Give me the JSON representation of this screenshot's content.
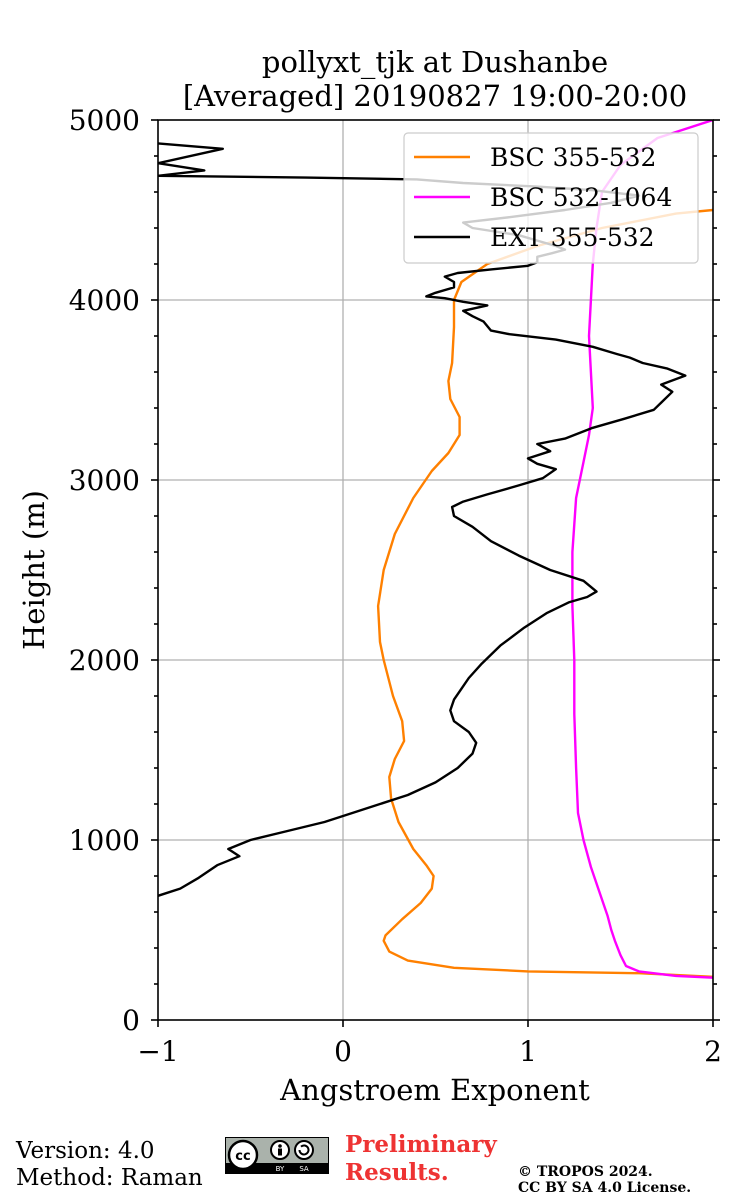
{
  "chart_data": {
    "type": "line",
    "title": [
      "pollyxt_tjk at Dushanbe",
      "[Averaged] 20190827 19:00-20:00"
    ],
    "xlabel": "Angstroem Exponent",
    "ylabel": "Height (m)",
    "xlim": [
      -1,
      2
    ],
    "ylim": [
      0,
      5000
    ],
    "xticks": [
      -1,
      0,
      1,
      2
    ],
    "xtick_labels": [
      "−1",
      "0",
      "1",
      "2"
    ],
    "yticks": [
      0,
      1000,
      2000,
      3000,
      4000,
      5000
    ],
    "ytick_labels": [
      "0",
      "1000",
      "2000",
      "3000",
      "4000",
      "5000"
    ],
    "grid": true,
    "legend_position": "top-right",
    "series": [
      {
        "name": "BSC 355-532",
        "color": "#ff8000",
        "points": [
          [
            2.0,
            240
          ],
          [
            1.6,
            260
          ],
          [
            1.0,
            270
          ],
          [
            0.6,
            290
          ],
          [
            0.35,
            330
          ],
          [
            0.25,
            380
          ],
          [
            0.22,
            440
          ],
          [
            0.23,
            470
          ],
          [
            0.32,
            560
          ],
          [
            0.42,
            650
          ],
          [
            0.48,
            730
          ],
          [
            0.49,
            800
          ],
          [
            0.45,
            860
          ],
          [
            0.38,
            950
          ],
          [
            0.3,
            1100
          ],
          [
            0.26,
            1230
          ],
          [
            0.25,
            1350
          ],
          [
            0.28,
            1450
          ],
          [
            0.33,
            1550
          ],
          [
            0.32,
            1660
          ],
          [
            0.27,
            1800
          ],
          [
            0.22,
            2000
          ],
          [
            0.2,
            2100
          ],
          [
            0.19,
            2300
          ],
          [
            0.22,
            2500
          ],
          [
            0.28,
            2700
          ],
          [
            0.38,
            2900
          ],
          [
            0.48,
            3050
          ],
          [
            0.57,
            3150
          ],
          [
            0.63,
            3250
          ],
          [
            0.63,
            3350
          ],
          [
            0.58,
            3450
          ],
          [
            0.57,
            3550
          ],
          [
            0.59,
            3650
          ],
          [
            0.6,
            3850
          ],
          [
            0.6,
            4000
          ],
          [
            0.64,
            4100
          ],
          [
            0.78,
            4200
          ],
          [
            1.05,
            4300
          ],
          [
            1.4,
            4400
          ],
          [
            1.8,
            4480
          ],
          [
            2.0,
            4500
          ]
        ]
      },
      {
        "name": "BSC 532-1064",
        "color": "#ff00ff",
        "points": [
          [
            2.0,
            235
          ],
          [
            1.8,
            245
          ],
          [
            1.6,
            270
          ],
          [
            1.53,
            300
          ],
          [
            1.5,
            360
          ],
          [
            1.47,
            440
          ],
          [
            1.45,
            500
          ],
          [
            1.43,
            580
          ],
          [
            1.39,
            700
          ],
          [
            1.34,
            850
          ],
          [
            1.3,
            1000
          ],
          [
            1.27,
            1150
          ],
          [
            1.26,
            1400
          ],
          [
            1.25,
            1700
          ],
          [
            1.25,
            2000
          ],
          [
            1.24,
            2300
          ],
          [
            1.24,
            2600
          ],
          [
            1.26,
            2900
          ],
          [
            1.3,
            3100
          ],
          [
            1.33,
            3250
          ],
          [
            1.35,
            3400
          ],
          [
            1.34,
            3600
          ],
          [
            1.33,
            3800
          ],
          [
            1.34,
            4000
          ],
          [
            1.35,
            4200
          ],
          [
            1.37,
            4400
          ],
          [
            1.4,
            4600
          ],
          [
            1.5,
            4750
          ],
          [
            1.7,
            4900
          ],
          [
            2.0,
            5000
          ]
        ]
      },
      {
        "name": "EXT 355-532",
        "color": "#000000",
        "points": [
          [
            -1.0,
            690
          ],
          [
            -0.88,
            730
          ],
          [
            -0.78,
            790
          ],
          [
            -0.68,
            860
          ],
          [
            -0.56,
            910
          ],
          [
            -0.62,
            950
          ],
          [
            -0.5,
            1000
          ],
          [
            -0.3,
            1050
          ],
          [
            -0.1,
            1100
          ],
          [
            0.05,
            1150
          ],
          [
            0.2,
            1200
          ],
          [
            0.35,
            1250
          ],
          [
            0.5,
            1320
          ],
          [
            0.62,
            1400
          ],
          [
            0.7,
            1480
          ],
          [
            0.72,
            1540
          ],
          [
            0.68,
            1600
          ],
          [
            0.6,
            1660
          ],
          [
            0.58,
            1720
          ],
          [
            0.6,
            1780
          ],
          [
            0.64,
            1840
          ],
          [
            0.68,
            1900
          ],
          [
            0.75,
            1980
          ],
          [
            0.85,
            2080
          ],
          [
            0.98,
            2180
          ],
          [
            1.1,
            2260
          ],
          [
            1.22,
            2320
          ],
          [
            1.32,
            2350
          ],
          [
            1.37,
            2380
          ],
          [
            1.3,
            2440
          ],
          [
            1.12,
            2500
          ],
          [
            0.95,
            2580
          ],
          [
            0.8,
            2660
          ],
          [
            0.7,
            2740
          ],
          [
            0.6,
            2800
          ],
          [
            0.59,
            2850
          ],
          [
            0.65,
            2880
          ],
          [
            0.78,
            2920
          ],
          [
            0.95,
            2970
          ],
          [
            1.08,
            3010
          ],
          [
            1.15,
            3060
          ],
          [
            1.05,
            3090
          ],
          [
            1.0,
            3120
          ],
          [
            1.12,
            3160
          ],
          [
            1.05,
            3200
          ],
          [
            1.2,
            3230
          ],
          [
            1.35,
            3290
          ],
          [
            1.52,
            3340
          ],
          [
            1.68,
            3390
          ],
          [
            1.72,
            3430
          ],
          [
            1.78,
            3490
          ],
          [
            1.72,
            3530
          ],
          [
            1.85,
            3580
          ],
          [
            1.75,
            3620
          ],
          [
            1.62,
            3650
          ],
          [
            1.55,
            3680
          ],
          [
            1.48,
            3700
          ],
          [
            1.35,
            3740
          ],
          [
            1.15,
            3780
          ],
          [
            0.9,
            3810
          ],
          [
            0.8,
            3830
          ],
          [
            0.76,
            3880
          ],
          [
            0.7,
            3910
          ],
          [
            0.65,
            3940
          ],
          [
            0.78,
            3970
          ],
          [
            0.65,
            3990
          ],
          [
            0.55,
            4010
          ],
          [
            0.45,
            4020
          ],
          [
            0.5,
            4040
          ],
          [
            0.6,
            4070
          ],
          [
            0.6,
            4100
          ],
          [
            0.55,
            4130
          ],
          [
            0.62,
            4150
          ],
          [
            0.8,
            4170
          ],
          [
            1.0,
            4190
          ],
          [
            1.05,
            4210
          ],
          [
            1.05,
            4240
          ],
          [
            1.13,
            4260
          ],
          [
            1.2,
            4280
          ],
          [
            1.15,
            4300
          ],
          [
            1.05,
            4330
          ],
          [
            0.95,
            4360
          ],
          [
            0.7,
            4400
          ],
          [
            0.65,
            4430
          ],
          [
            0.9,
            4460
          ],
          [
            1.2,
            4500
          ],
          [
            1.45,
            4540
          ],
          [
            1.6,
            4580
          ],
          [
            1.35,
            4610
          ],
          [
            1.05,
            4630
          ],
          [
            0.65,
            4650
          ],
          [
            0.4,
            4670
          ],
          [
            -0.2,
            4680
          ],
          [
            -1.0,
            4690
          ],
          [
            -0.75,
            4720
          ],
          [
            -1.0,
            4760
          ],
          [
            -0.65,
            4840
          ],
          [
            -1.0,
            4870
          ]
        ]
      }
    ]
  },
  "footer": {
    "version": "Version: 4.0",
    "method": "Method: Raman",
    "preliminary_line1": "Preliminary",
    "preliminary_line2": "Results.",
    "copyright_line1": "© TROPOS 2024.",
    "copyright_line2": "CC BY SA 4.0 License.",
    "cc_label": "cc",
    "cc_by": "BY",
    "cc_sa": "SA"
  }
}
